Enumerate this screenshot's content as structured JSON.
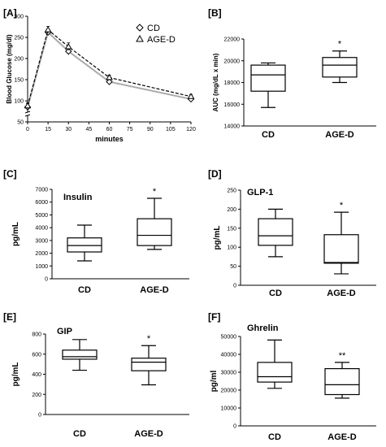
{
  "chart_data": [
    {
      "panel": "[A]",
      "type": "line",
      "title": "",
      "xlabel": "minutes",
      "ylabel": "Blood Glucose (mg/dl)",
      "xlim": [
        0,
        120
      ],
      "ylim": [
        50,
        300
      ],
      "yaxis_break": true,
      "x_ticks": [
        "0",
        "15",
        "30",
        "45",
        "60",
        "75",
        "90",
        "105",
        "120"
      ],
      "y_ticks": [
        "50",
        "100",
        "150",
        "200",
        "250",
        "300"
      ],
      "legend": "top-right",
      "series": [
        {
          "name": "CD",
          "marker": "diamond",
          "line": "solid",
          "color": "#aaaaaa",
          "x": [
            0,
            15,
            30,
            60,
            120
          ],
          "y": [
            85,
            262,
            217,
            145,
            104
          ],
          "err": [
            8,
            7,
            8,
            6,
            5
          ]
        },
        {
          "name": "AGE-D",
          "marker": "triangle",
          "line": "dashed",
          "color": "#000000",
          "x": [
            0,
            15,
            30,
            60,
            120
          ],
          "y": [
            88,
            268,
            228,
            155,
            110
          ],
          "err": [
            8,
            8,
            9,
            6,
            5
          ]
        }
      ]
    },
    {
      "panel": "[B]",
      "type": "box",
      "title": "",
      "ylabel": "AUC (mg/dL x min)",
      "ylim": [
        14000,
        22000
      ],
      "y_ticks": [
        "14000",
        "16000",
        "18000",
        "20000",
        "22000"
      ],
      "categories": [
        "CD",
        "AGE-D"
      ],
      "boxes": [
        {
          "min": 15700,
          "q1": 17200,
          "median": 18700,
          "q3": 19600,
          "max": 19800,
          "sig": ""
        },
        {
          "min": 18000,
          "q1": 18500,
          "median": 19600,
          "q3": 20300,
          "max": 20900,
          "sig": "*"
        }
      ]
    },
    {
      "panel": "[C]",
      "type": "box",
      "title": "Insulin",
      "ylabel": "pg/mL",
      "ylim": [
        0,
        7000
      ],
      "y_ticks": [
        "0",
        "1000",
        "2000",
        "3000",
        "4000",
        "5000",
        "6000",
        "7000"
      ],
      "categories": [
        "CD",
        "AGE-D"
      ],
      "boxes": [
        {
          "min": 1400,
          "q1": 2100,
          "median": 2600,
          "q3": 3200,
          "max": 4200,
          "sig": ""
        },
        {
          "min": 2300,
          "q1": 2600,
          "median": 3400,
          "q3": 4700,
          "max": 6300,
          "sig": "*"
        }
      ]
    },
    {
      "panel": "[D]",
      "type": "box",
      "title": "GLP-1",
      "ylabel": "pg/mL",
      "ylim": [
        0,
        250
      ],
      "y_ticks": [
        "0",
        "50",
        "100",
        "150",
        "200",
        "250"
      ],
      "categories": [
        "CD",
        "AGE-D"
      ],
      "boxes": [
        {
          "min": 75,
          "q1": 105,
          "median": 130,
          "q3": 175,
          "max": 200,
          "sig": ""
        },
        {
          "min": 30,
          "q1": 58,
          "median": 60,
          "q3": 133,
          "max": 192,
          "sig": "*"
        }
      ]
    },
    {
      "panel": "[E]",
      "type": "box",
      "title": "GIP",
      "ylabel": "pg/mL",
      "ylim": [
        0,
        800
      ],
      "y_ticks": [
        "0",
        "200",
        "400",
        "600",
        "800"
      ],
      "categories": [
        "CD",
        "AGE-D"
      ],
      "boxes": [
        {
          "min": 440,
          "q1": 550,
          "median": 575,
          "q3": 640,
          "max": 745,
          "sig": ""
        },
        {
          "min": 295,
          "q1": 435,
          "median": 520,
          "q3": 560,
          "max": 685,
          "sig": "*"
        }
      ]
    },
    {
      "panel": "[F]",
      "type": "box",
      "title": "Ghrelin",
      "ylabel": "pg/ml",
      "ylim": [
        0,
        50000
      ],
      "y_ticks": [
        "0",
        "10000",
        "20000",
        "30000",
        "40000",
        "50000"
      ],
      "categories": [
        "CD",
        "AGE-D"
      ],
      "boxes": [
        {
          "min": 21000,
          "q1": 24500,
          "median": 27500,
          "q3": 35500,
          "max": 48000,
          "sig": ""
        },
        {
          "min": 15500,
          "q1": 17500,
          "median": 23000,
          "q3": 32000,
          "max": 35500,
          "sig": "**"
        }
      ]
    }
  ]
}
